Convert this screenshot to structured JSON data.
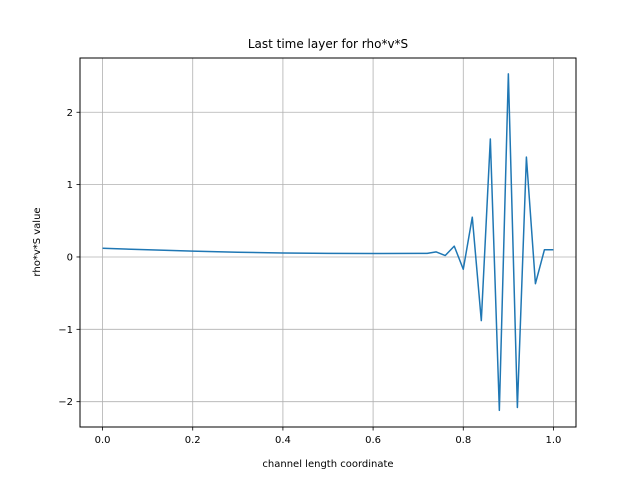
{
  "chart_data": {
    "type": "line",
    "title": "Last time layer for rho*v*S",
    "xlabel": "channel length coordinate",
    "ylabel": "rho*v*S value",
    "xlim": [
      -0.05,
      1.05
    ],
    "ylim": [
      -2.35,
      2.75
    ],
    "xticks": [
      0.0,
      0.2,
      0.4,
      0.6,
      0.8,
      1.0
    ],
    "xtick_labels": [
      "0.0",
      "0.2",
      "0.4",
      "0.6",
      "0.8",
      "1.0"
    ],
    "yticks": [
      -2,
      -1,
      0,
      1,
      2
    ],
    "ytick_labels": [
      "−2",
      "−1",
      "0",
      "1",
      "2"
    ],
    "grid": true,
    "series": [
      {
        "color": "#1f77b4",
        "x": [
          0.0,
          0.1,
          0.2,
          0.3,
          0.4,
          0.5,
          0.6,
          0.7,
          0.72,
          0.74,
          0.76,
          0.78,
          0.8,
          0.82,
          0.84,
          0.86,
          0.88,
          0.9,
          0.92,
          0.94,
          0.96,
          0.98,
          1.0
        ],
        "y": [
          0.12,
          0.1,
          0.08,
          0.065,
          0.055,
          0.05,
          0.048,
          0.05,
          0.05,
          0.07,
          0.02,
          0.15,
          -0.17,
          0.55,
          -0.88,
          1.63,
          -2.12,
          2.53,
          -2.08,
          1.38,
          -0.37,
          0.1,
          0.1
        ]
      }
    ]
  }
}
